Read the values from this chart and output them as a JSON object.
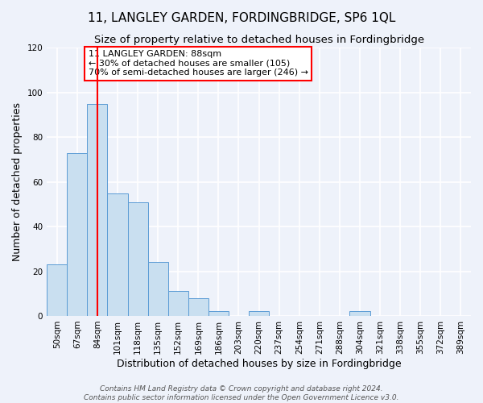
{
  "title": "11, LANGLEY GARDEN, FORDINGBRIDGE, SP6 1QL",
  "subtitle": "Size of property relative to detached houses in Fordingbridge",
  "xlabel": "Distribution of detached houses by size in Fordingbridge",
  "ylabel": "Number of detached properties",
  "footer_line1": "Contains HM Land Registry data © Crown copyright and database right 2024.",
  "footer_line2": "Contains public sector information licensed under the Open Government Licence v3.0.",
  "bin_labels": [
    "50sqm",
    "67sqm",
    "84sqm",
    "101sqm",
    "118sqm",
    "135sqm",
    "152sqm",
    "169sqm",
    "186sqm",
    "203sqm",
    "220sqm",
    "237sqm",
    "254sqm",
    "271sqm",
    "288sqm",
    "304sqm",
    "321sqm",
    "338sqm",
    "355sqm",
    "372sqm",
    "389sqm"
  ],
  "bar_heights": [
    23,
    73,
    95,
    55,
    51,
    24,
    11,
    8,
    2,
    0,
    2,
    0,
    0,
    0,
    0,
    2,
    0,
    0,
    0,
    0,
    0
  ],
  "bar_color": "#c9dff0",
  "bar_edge_color": "#5b9bd5",
  "vline_bin_index": 2,
  "vline_color": "red",
  "annotation_text": "11 LANGLEY GARDEN: 88sqm\n← 30% of detached houses are smaller (105)\n70% of semi-detached houses are larger (246) →",
  "annotation_box_color": "white",
  "annotation_box_edge_color": "red",
  "ylim": [
    0,
    120
  ],
  "yticks": [
    0,
    20,
    40,
    60,
    80,
    100,
    120
  ],
  "background_color": "#eef2fa",
  "grid_color": "white",
  "title_fontsize": 11,
  "subtitle_fontsize": 9.5,
  "axis_label_fontsize": 9,
  "tick_fontsize": 7.5,
  "footer_fontsize": 6.5,
  "annotation_fontsize": 8
}
